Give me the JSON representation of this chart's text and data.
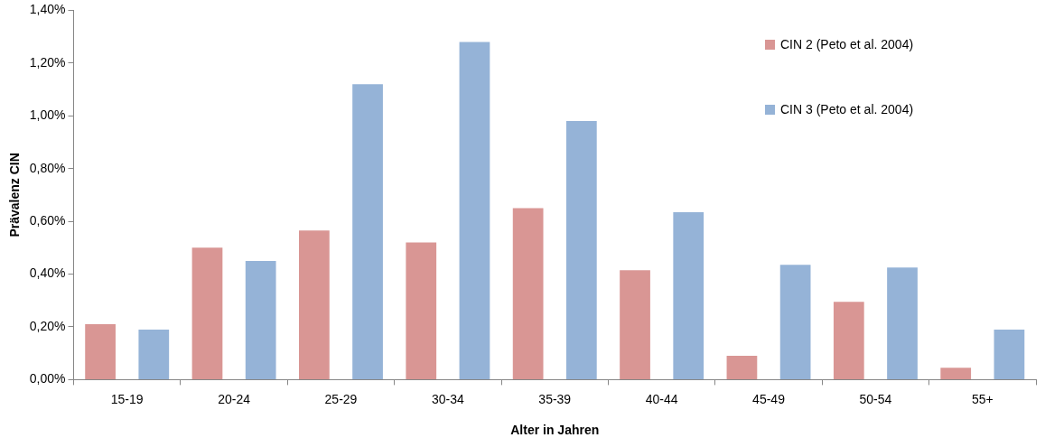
{
  "chart_data": {
    "type": "bar",
    "xlabel": "Alter in Jahren",
    "ylabel": "Prävalenz CIN",
    "categories": [
      "15-19",
      "20-24",
      "25-29",
      "30-34",
      "35-39",
      "40-44",
      "45-49",
      "50-54",
      "55+"
    ],
    "series": [
      {
        "name": "CIN 2 (Peto et al. 2004)",
        "color": "#d99694",
        "values": [
          0.21,
          0.5,
          0.565,
          0.52,
          0.65,
          0.415,
          0.09,
          0.295,
          0.045
        ]
      },
      {
        "name": "CIN 3 (Peto et al. 2004)",
        "color": "#95b3d7",
        "values": [
          0.19,
          0.45,
          1.12,
          1.28,
          0.98,
          0.635,
          0.435,
          0.425,
          0.19
        ]
      }
    ],
    "ylim": [
      0,
      1.4
    ],
    "yticks": [
      {
        "value": 0,
        "label": "0,00%"
      },
      {
        "value": 0.2,
        "label": "0,20%"
      },
      {
        "value": 0.4,
        "label": "0,40%"
      },
      {
        "value": 0.6,
        "label": "0,60%"
      },
      {
        "value": 0.8,
        "label": "0,80%"
      },
      {
        "value": 1.0,
        "label": "1,00%"
      },
      {
        "value": 1.2,
        "label": "1,20%"
      },
      {
        "value": 1.4,
        "label": "1,40%"
      }
    ],
    "grid": false,
    "legend": "top right"
  }
}
